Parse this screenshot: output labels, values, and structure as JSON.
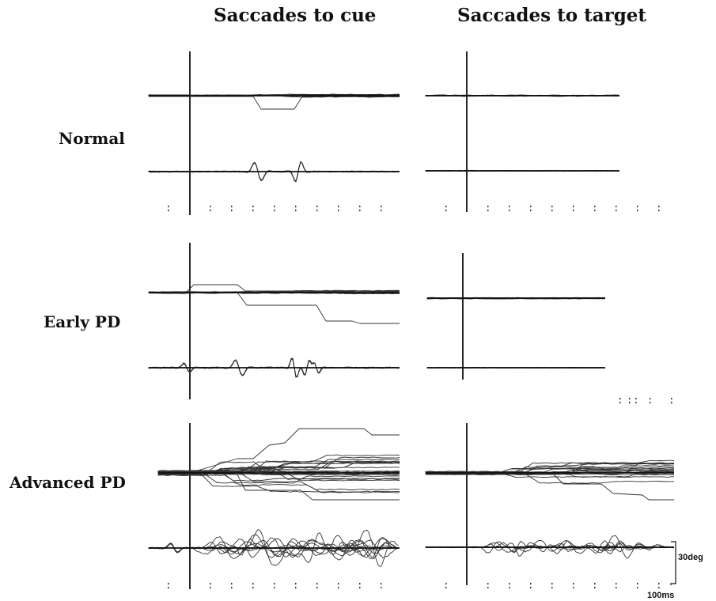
{
  "columns": [
    {
      "title": "Saccades to cue"
    },
    {
      "title": "Saccades to target"
    }
  ],
  "rows": [
    {
      "label": "Normal"
    },
    {
      "label": "Early PD"
    },
    {
      "label": "Advanced PD"
    }
  ],
  "scale_bar": {
    "amplitude_label": "30deg",
    "time_label": "100ms"
  },
  "colors": {
    "trace": "#333333",
    "axis": "#111111",
    "background": "#ffffff"
  }
}
